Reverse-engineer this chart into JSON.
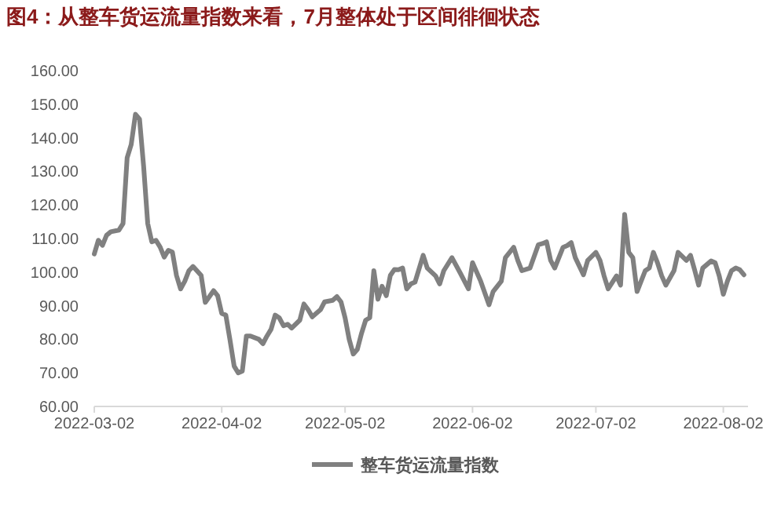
{
  "chart_data": {
    "type": "line",
    "title": "图4：从整车货运流量指数来看，7月整体处于区间徘徊状态",
    "legend": "bottom",
    "marker": "none",
    "line_style": "solid",
    "xlim": [
      "2022-03-02",
      "2022-08-08"
    ],
    "xticks": [
      "2022-03-02",
      "2022-04-02",
      "2022-05-02",
      "2022-06-02",
      "2022-07-02",
      "2022-08-02"
    ],
    "ylim": [
      60,
      160
    ],
    "yticks": [
      {
        "value": 60,
        "label": "60.00"
      },
      {
        "value": 70,
        "label": "70.00"
      },
      {
        "value": 80,
        "label": "80.00"
      },
      {
        "value": 90,
        "label": "90.00"
      },
      {
        "value": 100,
        "label": "100.00"
      },
      {
        "value": 110,
        "label": "110.00"
      },
      {
        "value": 120,
        "label": "120.00"
      },
      {
        "value": 130,
        "label": "130.00"
      },
      {
        "value": 140,
        "label": "140.00"
      },
      {
        "value": 150,
        "label": "150.00"
      },
      {
        "value": 160,
        "label": "160.00"
      }
    ],
    "x": [
      "2022-03-02",
      "2022-03-03",
      "2022-03-04",
      "2022-03-05",
      "2022-03-06",
      "2022-03-08",
      "2022-03-09",
      "2022-03-10",
      "2022-03-11",
      "2022-03-12",
      "2022-03-13",
      "2022-03-14",
      "2022-03-15",
      "2022-03-16",
      "2022-03-17",
      "2022-03-18",
      "2022-03-19",
      "2022-03-20",
      "2022-03-21",
      "2022-03-22",
      "2022-03-23",
      "2022-03-24",
      "2022-03-25",
      "2022-03-26",
      "2022-03-28",
      "2022-03-29",
      "2022-03-31",
      "2022-04-01",
      "2022-04-02",
      "2022-04-03",
      "2022-04-04",
      "2022-04-05",
      "2022-04-06",
      "2022-04-07",
      "2022-04-08",
      "2022-04-09",
      "2022-04-11",
      "2022-04-12",
      "2022-04-13",
      "2022-04-14",
      "2022-04-15",
      "2022-04-16",
      "2022-04-17",
      "2022-04-18",
      "2022-04-19",
      "2022-04-21",
      "2022-04-22",
      "2022-04-23",
      "2022-04-24",
      "2022-04-26",
      "2022-04-27",
      "2022-04-29",
      "2022-04-30",
      "2022-05-01",
      "2022-05-02",
      "2022-05-03",
      "2022-05-04",
      "2022-05-05",
      "2022-05-06",
      "2022-05-07",
      "2022-05-08",
      "2022-05-09",
      "2022-05-10",
      "2022-05-11",
      "2022-05-12",
      "2022-05-13",
      "2022-05-14",
      "2022-05-15",
      "2022-05-16",
      "2022-05-17",
      "2022-05-18",
      "2022-05-19",
      "2022-05-21",
      "2022-05-22",
      "2022-05-24",
      "2022-05-25",
      "2022-05-26",
      "2022-05-28",
      "2022-05-30",
      "2022-06-01",
      "2022-06-02",
      "2022-06-04",
      "2022-06-06",
      "2022-06-07",
      "2022-06-09",
      "2022-06-10",
      "2022-06-12",
      "2022-06-13",
      "2022-06-14",
      "2022-06-16",
      "2022-06-18",
      "2022-06-19",
      "2022-06-20",
      "2022-06-21",
      "2022-06-22",
      "2022-06-24",
      "2022-06-25",
      "2022-06-26",
      "2022-06-27",
      "2022-06-29",
      "2022-06-30",
      "2022-07-02",
      "2022-07-03",
      "2022-07-04",
      "2022-07-05",
      "2022-07-07",
      "2022-07-08",
      "2022-07-09",
      "2022-07-10",
      "2022-07-11",
      "2022-07-12",
      "2022-07-14",
      "2022-07-15",
      "2022-07-16",
      "2022-07-17",
      "2022-07-18",
      "2022-07-19",
      "2022-07-21",
      "2022-07-22",
      "2022-07-24",
      "2022-07-25",
      "2022-07-26",
      "2022-07-27",
      "2022-07-28",
      "2022-07-30",
      "2022-07-31",
      "2022-08-01",
      "2022-08-02",
      "2022-08-03",
      "2022-08-04",
      "2022-08-05",
      "2022-08-06",
      "2022-08-07"
    ],
    "series": [
      {
        "name": "整车货运流量指数",
        "color": "#808080",
        "values": [
          105.4,
          109.5,
          108,
          111,
          112,
          112.5,
          114.5,
          134,
          138,
          147,
          145.5,
          131.5,
          114.5,
          109,
          109.5,
          107.5,
          104.5,
          106.5,
          106,
          99,
          95,
          97.3,
          100.4,
          101.7,
          99,
          91,
          94.5,
          93,
          87.7,
          87.2,
          80,
          72,
          70,
          70.5,
          81,
          81,
          80,
          78.7,
          81,
          83,
          87.2,
          86.4,
          84,
          84.5,
          83.3,
          85.7,
          90.5,
          88.8,
          86.7,
          88.8,
          91.1,
          91.6,
          92.7,
          91.1,
          86.4,
          80,
          75.6,
          77,
          81.8,
          85.7,
          86.4,
          100.4,
          91.9,
          95.8,
          93,
          99,
          100.8,
          100.7,
          101.2,
          95,
          96.5,
          97,
          105,
          101.2,
          98.9,
          96.5,
          100.4,
          104.3,
          99.7,
          95,
          102.8,
          97.3,
          90.3,
          94.2,
          97.3,
          104.3,
          107.4,
          103.5,
          100.4,
          101.2,
          108.2,
          108.5,
          109,
          103.5,
          101.2,
          107.4,
          107.9,
          108.8,
          104.3,
          99.2,
          103.5,
          105.9,
          103.5,
          98.9,
          95,
          98.9,
          96.1,
          117.2,
          105.9,
          104.3,
          94.2,
          100.4,
          101.2,
          105.9,
          102.8,
          98.9,
          96.1,
          100.4,
          105.9,
          103.5,
          105,
          100.7,
          96.1,
          101.2,
          103.3,
          102.8,
          98.9,
          93.4,
          97.3,
          100.4,
          101.2,
          100.7,
          99.2
        ]
      }
    ]
  }
}
